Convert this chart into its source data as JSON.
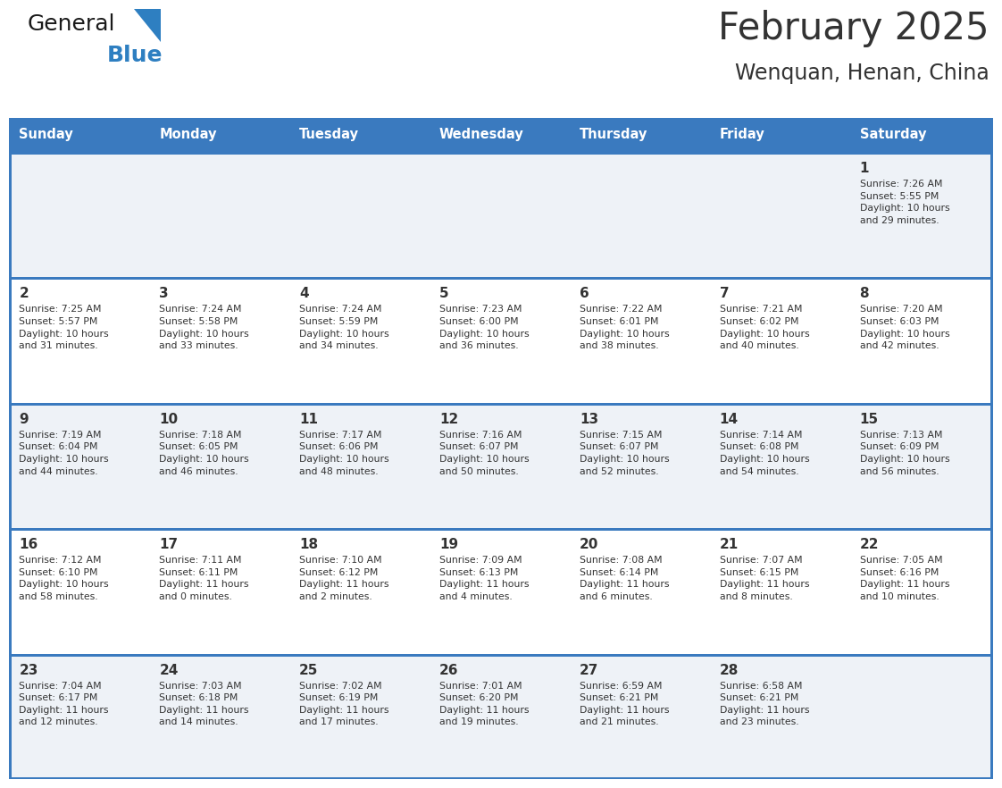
{
  "title": "February 2025",
  "subtitle": "Wenquan, Henan, China",
  "header_bg": "#3a7abf",
  "header_text_color": "#ffffff",
  "cell_bg_odd": "#eef2f7",
  "cell_bg_even": "#ffffff",
  "line_color": "#3a7abf",
  "text_color": "#333333",
  "days_of_week": [
    "Sunday",
    "Monday",
    "Tuesday",
    "Wednesday",
    "Thursday",
    "Friday",
    "Saturday"
  ],
  "calendar_data": [
    [
      {
        "day": null,
        "info": null
      },
      {
        "day": null,
        "info": null
      },
      {
        "day": null,
        "info": null
      },
      {
        "day": null,
        "info": null
      },
      {
        "day": null,
        "info": null
      },
      {
        "day": null,
        "info": null
      },
      {
        "day": 1,
        "info": "Sunrise: 7:26 AM\nSunset: 5:55 PM\nDaylight: 10 hours\nand 29 minutes."
      }
    ],
    [
      {
        "day": 2,
        "info": "Sunrise: 7:25 AM\nSunset: 5:57 PM\nDaylight: 10 hours\nand 31 minutes."
      },
      {
        "day": 3,
        "info": "Sunrise: 7:24 AM\nSunset: 5:58 PM\nDaylight: 10 hours\nand 33 minutes."
      },
      {
        "day": 4,
        "info": "Sunrise: 7:24 AM\nSunset: 5:59 PM\nDaylight: 10 hours\nand 34 minutes."
      },
      {
        "day": 5,
        "info": "Sunrise: 7:23 AM\nSunset: 6:00 PM\nDaylight: 10 hours\nand 36 minutes."
      },
      {
        "day": 6,
        "info": "Sunrise: 7:22 AM\nSunset: 6:01 PM\nDaylight: 10 hours\nand 38 minutes."
      },
      {
        "day": 7,
        "info": "Sunrise: 7:21 AM\nSunset: 6:02 PM\nDaylight: 10 hours\nand 40 minutes."
      },
      {
        "day": 8,
        "info": "Sunrise: 7:20 AM\nSunset: 6:03 PM\nDaylight: 10 hours\nand 42 minutes."
      }
    ],
    [
      {
        "day": 9,
        "info": "Sunrise: 7:19 AM\nSunset: 6:04 PM\nDaylight: 10 hours\nand 44 minutes."
      },
      {
        "day": 10,
        "info": "Sunrise: 7:18 AM\nSunset: 6:05 PM\nDaylight: 10 hours\nand 46 minutes."
      },
      {
        "day": 11,
        "info": "Sunrise: 7:17 AM\nSunset: 6:06 PM\nDaylight: 10 hours\nand 48 minutes."
      },
      {
        "day": 12,
        "info": "Sunrise: 7:16 AM\nSunset: 6:07 PM\nDaylight: 10 hours\nand 50 minutes."
      },
      {
        "day": 13,
        "info": "Sunrise: 7:15 AM\nSunset: 6:07 PM\nDaylight: 10 hours\nand 52 minutes."
      },
      {
        "day": 14,
        "info": "Sunrise: 7:14 AM\nSunset: 6:08 PM\nDaylight: 10 hours\nand 54 minutes."
      },
      {
        "day": 15,
        "info": "Sunrise: 7:13 AM\nSunset: 6:09 PM\nDaylight: 10 hours\nand 56 minutes."
      }
    ],
    [
      {
        "day": 16,
        "info": "Sunrise: 7:12 AM\nSunset: 6:10 PM\nDaylight: 10 hours\nand 58 minutes."
      },
      {
        "day": 17,
        "info": "Sunrise: 7:11 AM\nSunset: 6:11 PM\nDaylight: 11 hours\nand 0 minutes."
      },
      {
        "day": 18,
        "info": "Sunrise: 7:10 AM\nSunset: 6:12 PM\nDaylight: 11 hours\nand 2 minutes."
      },
      {
        "day": 19,
        "info": "Sunrise: 7:09 AM\nSunset: 6:13 PM\nDaylight: 11 hours\nand 4 minutes."
      },
      {
        "day": 20,
        "info": "Sunrise: 7:08 AM\nSunset: 6:14 PM\nDaylight: 11 hours\nand 6 minutes."
      },
      {
        "day": 21,
        "info": "Sunrise: 7:07 AM\nSunset: 6:15 PM\nDaylight: 11 hours\nand 8 minutes."
      },
      {
        "day": 22,
        "info": "Sunrise: 7:05 AM\nSunset: 6:16 PM\nDaylight: 11 hours\nand 10 minutes."
      }
    ],
    [
      {
        "day": 23,
        "info": "Sunrise: 7:04 AM\nSunset: 6:17 PM\nDaylight: 11 hours\nand 12 minutes."
      },
      {
        "day": 24,
        "info": "Sunrise: 7:03 AM\nSunset: 6:18 PM\nDaylight: 11 hours\nand 14 minutes."
      },
      {
        "day": 25,
        "info": "Sunrise: 7:02 AM\nSunset: 6:19 PM\nDaylight: 11 hours\nand 17 minutes."
      },
      {
        "day": 26,
        "info": "Sunrise: 7:01 AM\nSunset: 6:20 PM\nDaylight: 11 hours\nand 19 minutes."
      },
      {
        "day": 27,
        "info": "Sunrise: 6:59 AM\nSunset: 6:21 PM\nDaylight: 11 hours\nand 21 minutes."
      },
      {
        "day": 28,
        "info": "Sunrise: 6:58 AM\nSunset: 6:21 PM\nDaylight: 11 hours\nand 23 minutes."
      },
      {
        "day": null,
        "info": null
      }
    ]
  ],
  "logo_color_general": "#1a1a1a",
  "logo_color_blue": "#2e7fc1",
  "logo_triangle_color": "#2e7fc1"
}
